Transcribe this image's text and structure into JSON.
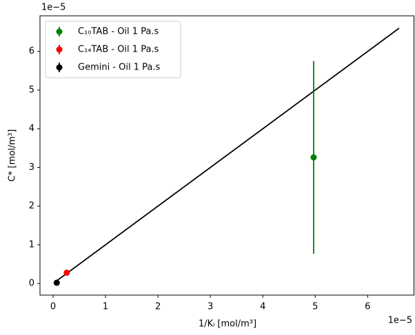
{
  "chart_data": {
    "type": "errorbar",
    "xlabel": "1/Kₗ [mol/m³]",
    "ylabel": "C* [mol/m³]",
    "x_offset_text": "1e−5",
    "y_offset_text": "1e−5",
    "xlim": [
      -0.25,
      6.89
    ],
    "ylim": [
      -0.3,
      6.92
    ],
    "xticks": [
      0,
      1,
      2,
      3,
      4,
      5,
      6
    ],
    "yticks": [
      0,
      1,
      2,
      3,
      4,
      5,
      6
    ],
    "legend": "upper left",
    "series": [
      {
        "name": "C₁₀TAB - Oil 1 Pa.s",
        "color": "#008000",
        "x": [
          4.97
        ],
        "values": [
          3.26
        ],
        "yerr": [
          2.49
        ]
      },
      {
        "name": "C₁₄TAB - Oil 1 Pa.s",
        "color": "#ff0000",
        "x": [
          0.26
        ],
        "values": [
          0.28
        ],
        "yerr": [
          0.05
        ]
      },
      {
        "name": "Gemini - Oil 1 Pa.s",
        "color": "#000000",
        "x": [
          0.07
        ],
        "values": [
          0.02
        ],
        "yerr": [
          0
        ]
      }
    ],
    "lines": [
      {
        "color": "#000000",
        "x": [
          0.07,
          6.6
        ],
        "values": [
          0.07,
          6.6
        ]
      }
    ]
  }
}
